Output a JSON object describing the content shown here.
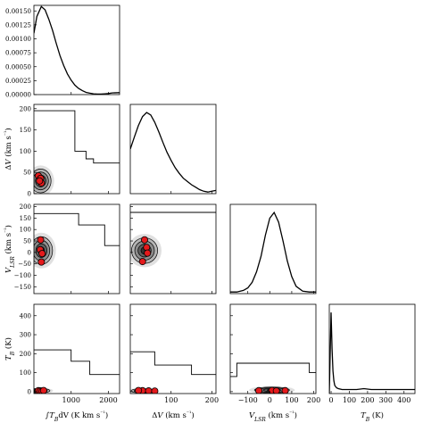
{
  "chart_data": {
    "type": "corner",
    "params": [
      {
        "label": "∫T_B dV (K km s⁻¹)",
        "range": [
          0,
          2300
        ],
        "ticks": [
          1000,
          2000
        ],
        "tick_labels": [
          "1000",
          "2000"
        ]
      },
      {
        "label": "ΔV (km s⁻¹)",
        "range": [
          0,
          210
        ],
        "ticks": [
          0,
          50,
          100,
          150,
          200
        ],
        "tick_labels": [
          "0",
          "50",
          "100",
          "150",
          "200"
        ],
        "ticks_bottom": [
          100,
          200
        ],
        "tick_labels_bottom": [
          "100",
          "200"
        ]
      },
      {
        "label": "V_LSR (km s⁻¹)",
        "range": [
          -180,
          210
        ],
        "ticks": [
          -150,
          -100,
          -50,
          0,
          50,
          100,
          150,
          200
        ],
        "tick_labels": [
          "−150",
          "−100",
          "−50",
          "0",
          "50",
          "100",
          "150",
          "200"
        ],
        "ticks_bottom": [
          -100,
          0,
          100,
          200
        ],
        "tick_labels_bottom": [
          "−100",
          "0",
          "100",
          "200"
        ]
      },
      {
        "label": "T_B (K)",
        "range": [
          -10,
          460
        ],
        "ticks": [
          0,
          100,
          200,
          300,
          400
        ],
        "tick_labels": [
          "0",
          "100",
          "200",
          "300",
          "400"
        ]
      }
    ],
    "marginals": [
      {
        "param": 0,
        "ylim": [
          0,
          0.0016
        ],
        "yticks": [
          0,
          0.00025,
          0.0005,
          0.00075,
          0.001,
          0.00125,
          0.0015
        ],
        "ytick_labels": [
          "0.00000",
          "0.00025",
          "0.00050",
          "0.00075",
          "0.00100",
          "0.00125",
          "0.00150"
        ],
        "x": [
          0,
          80,
          200,
          300,
          400,
          500,
          600,
          700,
          800,
          900,
          1000,
          1100,
          1200,
          1300,
          1400,
          1500,
          1600,
          1700,
          1800,
          1900,
          2000,
          2100,
          2300
        ],
        "y": [
          0.0011,
          0.0014,
          0.00158,
          0.00152,
          0.00135,
          0.00115,
          0.00092,
          0.0007,
          0.00052,
          0.00037,
          0.00026,
          0.00017,
          0.00011,
          7e-05,
          4e-05,
          2.5e-05,
          1.5e-05,
          1e-05,
          1e-05,
          1.5e-05,
          2e-05,
          3e-05,
          3.5e-05
        ]
      },
      {
        "param": 1,
        "x": [
          0,
          10,
          20,
          30,
          40,
          50,
          60,
          70,
          80,
          90,
          100,
          110,
          120,
          130,
          140,
          150,
          160,
          170,
          180,
          190,
          200,
          210
        ],
        "y": [
          0.55,
          0.7,
          0.84,
          0.95,
          1.0,
          0.97,
          0.88,
          0.76,
          0.63,
          0.51,
          0.41,
          0.32,
          0.25,
          0.19,
          0.15,
          0.11,
          0.08,
          0.05,
          0.03,
          0.02,
          0.03,
          0.04
        ]
      },
      {
        "param": 2,
        "x": [
          -180,
          -150,
          -120,
          -100,
          -80,
          -60,
          -40,
          -20,
          0,
          20,
          40,
          60,
          80,
          100,
          120,
          150,
          180,
          210
        ],
        "y": [
          0.02,
          0.02,
          0.04,
          0.07,
          0.14,
          0.27,
          0.46,
          0.72,
          0.93,
          1.0,
          0.88,
          0.65,
          0.4,
          0.21,
          0.09,
          0.03,
          0.02,
          0.02
        ]
      },
      {
        "param": 3,
        "x": [
          -10,
          0,
          5,
          10,
          15,
          20,
          30,
          40,
          60,
          80,
          100,
          140,
          180,
          220,
          260,
          300,
          340,
          380,
          420,
          460
        ],
        "y": [
          0.0,
          1.0,
          0.55,
          0.28,
          0.16,
          0.1,
          0.07,
          0.06,
          0.05,
          0.05,
          0.05,
          0.05,
          0.06,
          0.05,
          0.05,
          0.05,
          0.05,
          0.05,
          0.05,
          0.05
        ]
      }
    ],
    "pairs": [
      {
        "x": 0,
        "y": 1,
        "center": [
          180,
          30
        ],
        "sigma": [
          140,
          14
        ],
        "corr": -0.2,
        "points": [
          [
            120,
            42
          ],
          [
            180,
            36
          ],
          [
            200,
            25
          ],
          [
            150,
            30
          ]
        ],
        "outline": [
          [
            0,
            195
          ],
          [
            1100,
            195
          ],
          [
            1100,
            100
          ],
          [
            1400,
            100
          ],
          [
            1400,
            82
          ],
          [
            1600,
            82
          ],
          [
            1600,
            72
          ],
          [
            2300,
            72
          ]
        ]
      },
      {
        "x": 0,
        "y": 2,
        "center": [
          200,
          8
        ],
        "sigma": [
          150,
          30
        ],
        "corr": 0.0,
        "points": [
          [
            180,
            55
          ],
          [
            170,
            12
          ],
          [
            220,
            -5
          ],
          [
            200,
            -42
          ]
        ],
        "outline": [
          [
            0,
            170
          ],
          [
            1200,
            170
          ],
          [
            1200,
            120
          ],
          [
            1900,
            120
          ],
          [
            1900,
            30
          ],
          [
            2300,
            30
          ]
        ]
      },
      {
        "x": 0,
        "y": 3,
        "center": [
          150,
          5
        ],
        "sigma": [
          140,
          6
        ],
        "corr": 0.0,
        "points": [
          [
            120,
            5
          ],
          [
            170,
            4
          ],
          [
            220,
            3
          ],
          [
            260,
            6
          ]
        ],
        "outline": [
          [
            0,
            220
          ],
          [
            1000,
            220
          ],
          [
            1000,
            160
          ],
          [
            1500,
            160
          ],
          [
            1500,
            90
          ],
          [
            2300,
            90
          ]
        ]
      },
      {
        "x": 1,
        "y": 2,
        "center": [
          35,
          8
        ],
        "sigma": [
          16,
          28
        ],
        "corr": 0.0,
        "points": [
          [
            35,
            55
          ],
          [
            40,
            22
          ],
          [
            42,
            -3
          ],
          [
            30,
            -40
          ]
        ],
        "outline": [
          [
            0,
            175
          ],
          [
            210,
            175
          ]
        ]
      },
      {
        "x": 1,
        "y": 3,
        "center": [
          30,
          4
        ],
        "sigma": [
          14,
          6
        ],
        "corr": 0.0,
        "points": [
          [
            30,
            5
          ],
          [
            45,
            4
          ],
          [
            60,
            3
          ],
          [
            20,
            6
          ]
        ],
        "outline": [
          [
            0,
            210
          ],
          [
            60,
            210
          ],
          [
            60,
            140
          ],
          [
            150,
            140
          ],
          [
            150,
            90
          ],
          [
            210,
            90
          ]
        ]
      },
      {
        "x": 2,
        "y": 3,
        "center": [
          10,
          8
        ],
        "sigma": [
          40,
          8
        ],
        "corr": 0.0,
        "points": [
          [
            -50,
            5
          ],
          [
            10,
            6
          ],
          [
            30,
            4
          ],
          [
            70,
            5
          ]
        ],
        "outline": [
          [
            -180,
            80
          ],
          [
            -150,
            80
          ],
          [
            -150,
            150
          ],
          [
            180,
            150
          ],
          [
            180,
            100
          ],
          [
            210,
            100
          ]
        ]
      }
    ],
    "colors": {
      "line": "#000000",
      "points": "#e41a1c",
      "fill_levels": [
        "#e0e0e0",
        "#b5b5b5",
        "#8c8c8c",
        "#5f5f5f",
        "#333333"
      ]
    }
  }
}
